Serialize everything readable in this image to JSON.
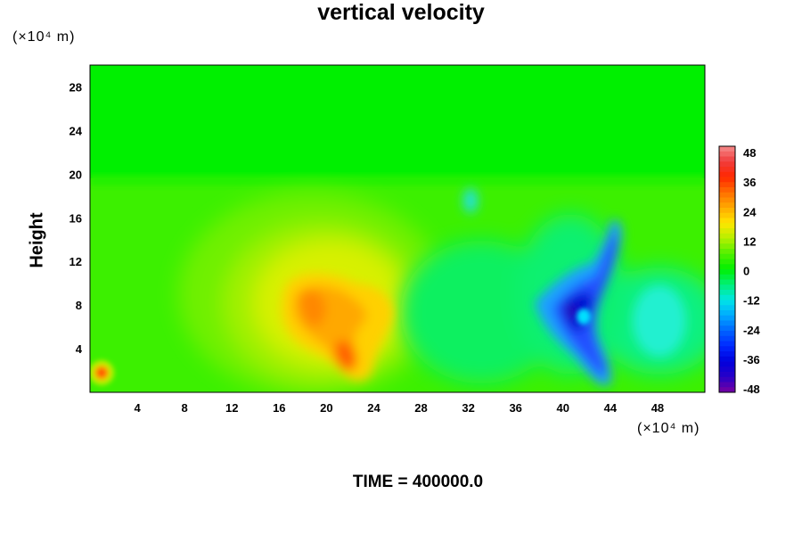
{
  "chart_data": {
    "type": "heatmap",
    "title": "vertical velocity",
    "xlabel": "",
    "ylabel": "Height",
    "x_unit_label": "(×10⁴ m)",
    "y_unit_label": "(×10⁴ m)",
    "xlim": [
      0,
      52
    ],
    "ylim": [
      0,
      30
    ],
    "x_ticks": [
      "4",
      "8",
      "12",
      "16",
      "20",
      "24",
      "28",
      "32",
      "36",
      "40",
      "44",
      "48"
    ],
    "y_ticks": [
      "4",
      "8",
      "12",
      "16",
      "20",
      "24",
      "28"
    ],
    "colorbar": {
      "range": [
        -48,
        48
      ],
      "tick_labels": [
        "48",
        "36",
        "24",
        "12",
        "0",
        "-12",
        "-24",
        "-36",
        "-48"
      ]
    },
    "features": [
      {
        "kind": "updraft-core",
        "x": 20.5,
        "y": 6.5,
        "value": 30
      },
      {
        "kind": "updraft-core",
        "x": 18.5,
        "y": 8.5,
        "value": 26
      },
      {
        "kind": "updraft-core",
        "x": 1,
        "y": 1.8,
        "value": 28
      },
      {
        "kind": "downdraft-core",
        "x": 40.5,
        "y": 7,
        "value": -44
      },
      {
        "kind": "downdraft-core",
        "x": 43.5,
        "y": 14,
        "value": -36
      }
    ],
    "footer": "TIME = 400000.0"
  }
}
